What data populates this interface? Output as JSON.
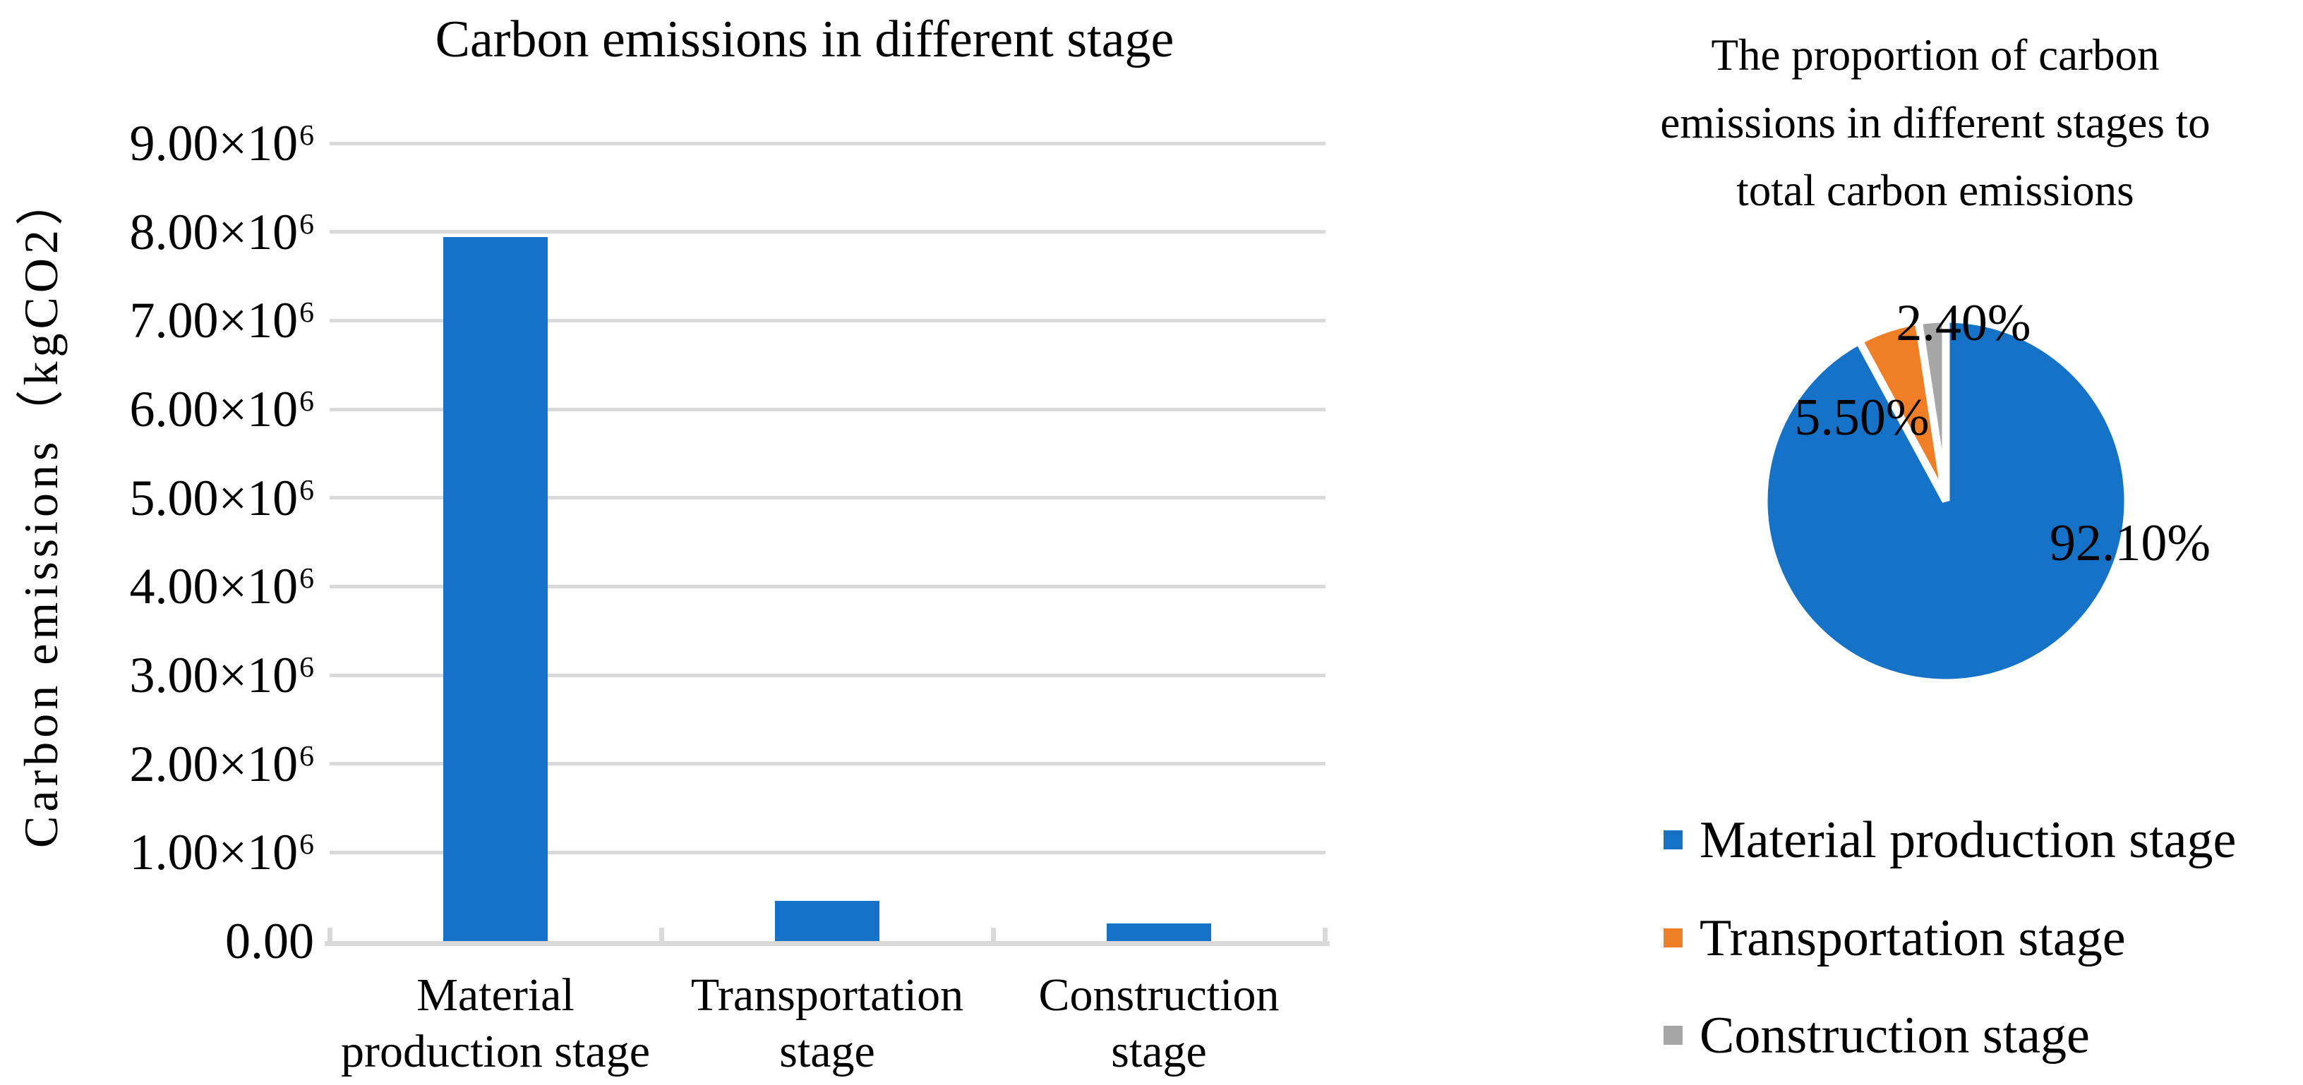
{
  "page": {
    "background": "#FFFFFF"
  },
  "colors": {
    "series_blue": "#1572C6",
    "series_orange": "#F07E27",
    "series_gray": "#A6A6A6",
    "gridline": "#D9D9D9",
    "axis_line": "#D9D9D9",
    "text": "#000000"
  },
  "chart_data": [
    {
      "type": "bar",
      "title": "Carbon emissions in different stage",
      "ylabel": "Carbon emissions（kgCO2）",
      "xlabel": "",
      "categories_lines": [
        [
          "Material",
          "production stage"
        ],
        [
          "Transportation",
          "stage"
        ],
        [
          "Construction",
          "stage"
        ]
      ],
      "categories": [
        "Material production stage",
        "Transportation stage",
        "Construction stage"
      ],
      "values": [
        7940000,
        450000,
        200000
      ],
      "ylim": [
        0,
        9000000
      ],
      "grid": true,
      "bar_color": "#1572C6",
      "y_ticks": [
        {
          "base": "9.00×10",
          "exp": "6",
          "value": 9000000
        },
        {
          "base": "8.00×10",
          "exp": "6",
          "value": 8000000
        },
        {
          "base": "7.00×10",
          "exp": "6",
          "value": 7000000
        },
        {
          "base": "6.00×10",
          "exp": "6",
          "value": 6000000
        },
        {
          "base": "5.00×10",
          "exp": "6",
          "value": 5000000
        },
        {
          "base": "4.00×10",
          "exp": "6",
          "value": 4000000
        },
        {
          "base": "3.00×10",
          "exp": "6",
          "value": 3000000
        },
        {
          "base": "2.00×10",
          "exp": "6",
          "value": 2000000
        },
        {
          "base": "1.00×10",
          "exp": "6",
          "value": 1000000
        },
        {
          "base": "0.00",
          "exp": "",
          "value": 0
        }
      ]
    },
    {
      "type": "pie",
      "title_lines": [
        "The proportion of carbon",
        "emissions in different stages to",
        "total carbon emissions"
      ],
      "start_angle_deg": 0,
      "direction": "clockwise",
      "legend_position": "bottom",
      "slices": [
        {
          "label": "Material production stage",
          "pct": 92.1,
          "pct_label": "92.10%",
          "color": "#1572C6"
        },
        {
          "label": "Transportation stage",
          "pct": 5.5,
          "pct_label": "5.50%",
          "color": "#F07E27"
        },
        {
          "label": "Construction stage",
          "pct": 2.4,
          "pct_label": "2.40%",
          "color": "#A6A6A6"
        }
      ]
    }
  ]
}
